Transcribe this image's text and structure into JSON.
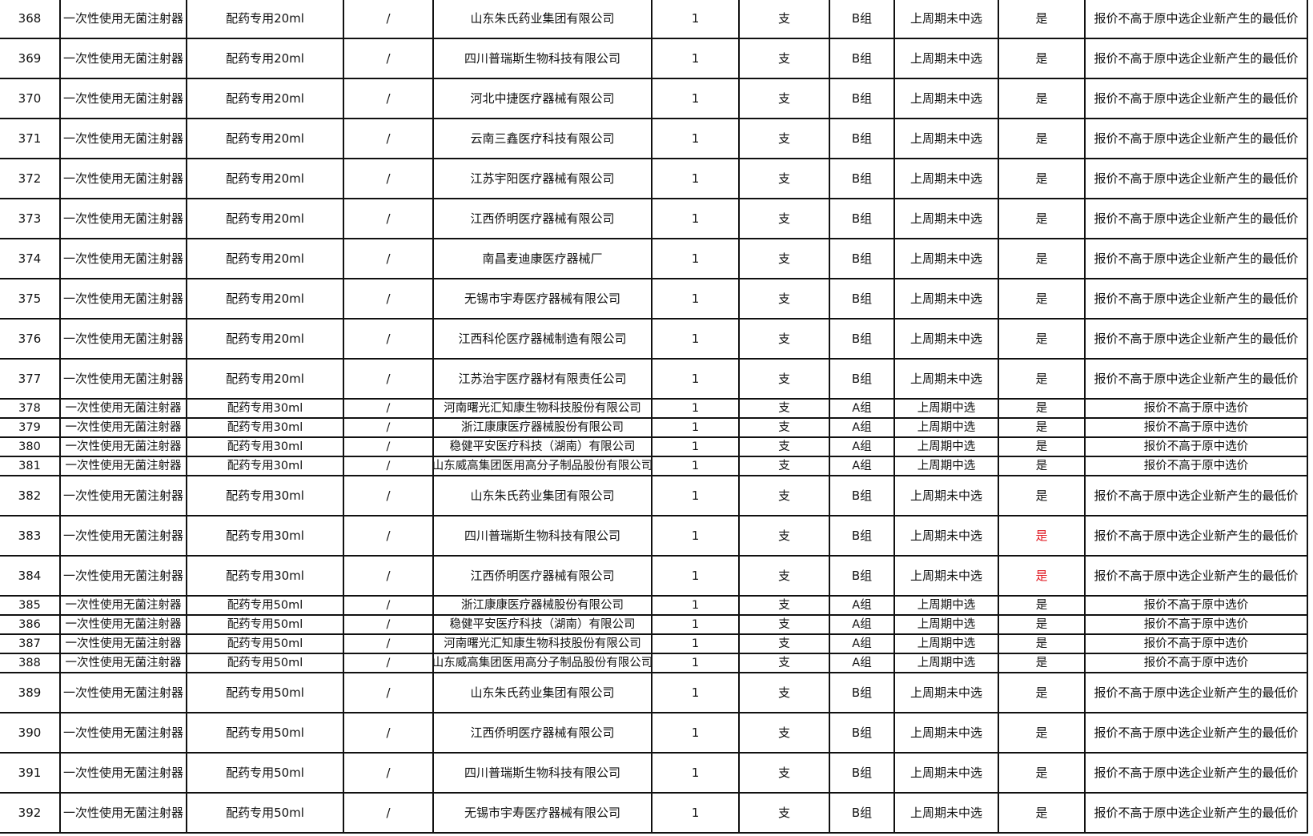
{
  "colors": {
    "flag_highlight": "#e0141e",
    "border": "#111111"
  },
  "rows": [
    {
      "no": "368",
      "name": "一次性使用无菌注射器",
      "spec": "配药专用20ml",
      "model": "/",
      "company": "山东朱氏药业集团有限公司",
      "qty": "1",
      "unit": "支",
      "group": "B组",
      "status": "上周期未中选",
      "flag": "是",
      "rule": "报价不高于原中选企业新产生的最低价",
      "tall": true
    },
    {
      "no": "369",
      "name": "一次性使用无菌注射器",
      "spec": "配药专用20ml",
      "model": "/",
      "company": "四川普瑞斯生物科技有限公司",
      "qty": "1",
      "unit": "支",
      "group": "B组",
      "status": "上周期未中选",
      "flag": "是",
      "rule": "报价不高于原中选企业新产生的最低价",
      "tall": true
    },
    {
      "no": "370",
      "name": "一次性使用无菌注射器",
      "spec": "配药专用20ml",
      "model": "/",
      "company": "河北中捷医疗器械有限公司",
      "qty": "1",
      "unit": "支",
      "group": "B组",
      "status": "上周期未中选",
      "flag": "是",
      "rule": "报价不高于原中选企业新产生的最低价",
      "tall": true
    },
    {
      "no": "371",
      "name": "一次性使用无菌注射器",
      "spec": "配药专用20ml",
      "model": "/",
      "company": "云南三鑫医疗科技有限公司",
      "qty": "1",
      "unit": "支",
      "group": "B组",
      "status": "上周期未中选",
      "flag": "是",
      "rule": "报价不高于原中选企业新产生的最低价",
      "tall": true
    },
    {
      "no": "372",
      "name": "一次性使用无菌注射器",
      "spec": "配药专用20ml",
      "model": "/",
      "company": "江苏宇阳医疗器械有限公司",
      "qty": "1",
      "unit": "支",
      "group": "B组",
      "status": "上周期未中选",
      "flag": "是",
      "rule": "报价不高于原中选企业新产生的最低价",
      "tall": true
    },
    {
      "no": "373",
      "name": "一次性使用无菌注射器",
      "spec": "配药专用20ml",
      "model": "/",
      "company": "江西侨明医疗器械有限公司",
      "qty": "1",
      "unit": "支",
      "group": "B组",
      "status": "上周期未中选",
      "flag": "是",
      "rule": "报价不高于原中选企业新产生的最低价",
      "tall": true
    },
    {
      "no": "374",
      "name": "一次性使用无菌注射器",
      "spec": "配药专用20ml",
      "model": "/",
      "company": "南昌麦迪康医疗器械厂",
      "qty": "1",
      "unit": "支",
      "group": "B组",
      "status": "上周期未中选",
      "flag": "是",
      "rule": "报价不高于原中选企业新产生的最低价",
      "tall": true
    },
    {
      "no": "375",
      "name": "一次性使用无菌注射器",
      "spec": "配药专用20ml",
      "model": "/",
      "company": "无锡市宇寿医疗器械有限公司",
      "qty": "1",
      "unit": "支",
      "group": "B组",
      "status": "上周期未中选",
      "flag": "是",
      "rule": "报价不高于原中选企业新产生的最低价",
      "tall": true
    },
    {
      "no": "376",
      "name": "一次性使用无菌注射器",
      "spec": "配药专用20ml",
      "model": "/",
      "company": "江西科伦医疗器械制造有限公司",
      "qty": "1",
      "unit": "支",
      "group": "B组",
      "status": "上周期未中选",
      "flag": "是",
      "rule": "报价不高于原中选企业新产生的最低价",
      "tall": true
    },
    {
      "no": "377",
      "name": "一次性使用无菌注射器",
      "spec": "配药专用20ml",
      "model": "/",
      "company": "江苏治宇医疗器材有限责任公司",
      "qty": "1",
      "unit": "支",
      "group": "B组",
      "status": "上周期未中选",
      "flag": "是",
      "rule": "报价不高于原中选企业新产生的最低价",
      "tall": true
    },
    {
      "no": "378",
      "name": "一次性使用无菌注射器",
      "spec": "配药专用30ml",
      "model": "/",
      "company": "河南曙光汇知康生物科技股份有限公司",
      "qty": "1",
      "unit": "支",
      "group": "A组",
      "status": "上周期中选",
      "flag": "是",
      "rule": "报价不高于原中选价",
      "tall": false
    },
    {
      "no": "379",
      "name": "一次性使用无菌注射器",
      "spec": "配药专用30ml",
      "model": "/",
      "company": "浙江康康医疗器械股份有限公司",
      "qty": "1",
      "unit": "支",
      "group": "A组",
      "status": "上周期中选",
      "flag": "是",
      "rule": "报价不高于原中选价",
      "tall": false
    },
    {
      "no": "380",
      "name": "一次性使用无菌注射器",
      "spec": "配药专用30ml",
      "model": "/",
      "company": "稳健平安医疗科技（湖南）有限公司",
      "qty": "1",
      "unit": "支",
      "group": "A组",
      "status": "上周期中选",
      "flag": "是",
      "rule": "报价不高于原中选价",
      "tall": false
    },
    {
      "no": "381",
      "name": "一次性使用无菌注射器",
      "spec": "配药专用30ml",
      "model": "/",
      "company": "山东威高集团医用高分子制品股份有限公司",
      "qty": "1",
      "unit": "支",
      "group": "A组",
      "status": "上周期中选",
      "flag": "是",
      "rule": "报价不高于原中选价",
      "tall": false
    },
    {
      "no": "382",
      "name": "一次性使用无菌注射器",
      "spec": "配药专用30ml",
      "model": "/",
      "company": "山东朱氏药业集团有限公司",
      "qty": "1",
      "unit": "支",
      "group": "B组",
      "status": "上周期未中选",
      "flag": "是",
      "rule": "报价不高于原中选企业新产生的最低价",
      "tall": true
    },
    {
      "no": "383",
      "name": "一次性使用无菌注射器",
      "spec": "配药专用30ml",
      "model": "/",
      "company": "四川普瑞斯生物科技有限公司",
      "qty": "1",
      "unit": "支",
      "group": "B组",
      "status": "上周期未中选",
      "flag": "是",
      "flag_red": true,
      "rule": "报价不高于原中选企业新产生的最低价",
      "tall": true
    },
    {
      "no": "384",
      "name": "一次性使用无菌注射器",
      "spec": "配药专用30ml",
      "model": "/",
      "company": "江西侨明医疗器械有限公司",
      "qty": "1",
      "unit": "支",
      "group": "B组",
      "status": "上周期未中选",
      "flag": "是",
      "flag_red": true,
      "rule": "报价不高于原中选企业新产生的最低价",
      "tall": true
    },
    {
      "no": "385",
      "name": "一次性使用无菌注射器",
      "spec": "配药专用50ml",
      "model": "/",
      "company": "浙江康康医疗器械股份有限公司",
      "qty": "1",
      "unit": "支",
      "group": "A组",
      "status": "上周期中选",
      "flag": "是",
      "rule": "报价不高于原中选价",
      "tall": false
    },
    {
      "no": "386",
      "name": "一次性使用无菌注射器",
      "spec": "配药专用50ml",
      "model": "/",
      "company": "稳健平安医疗科技（湖南）有限公司",
      "qty": "1",
      "unit": "支",
      "group": "A组",
      "status": "上周期中选",
      "flag": "是",
      "rule": "报价不高于原中选价",
      "tall": false
    },
    {
      "no": "387",
      "name": "一次性使用无菌注射器",
      "spec": "配药专用50ml",
      "model": "/",
      "company": "河南曙光汇知康生物科技股份有限公司",
      "qty": "1",
      "unit": "支",
      "group": "A组",
      "status": "上周期中选",
      "flag": "是",
      "rule": "报价不高于原中选价",
      "tall": false
    },
    {
      "no": "388",
      "name": "一次性使用无菌注射器",
      "spec": "配药专用50ml",
      "model": "/",
      "company": "山东威高集团医用高分子制品股份有限公司",
      "qty": "1",
      "unit": "支",
      "group": "A组",
      "status": "上周期中选",
      "flag": "是",
      "rule": "报价不高于原中选价",
      "tall": false
    },
    {
      "no": "389",
      "name": "一次性使用无菌注射器",
      "spec": "配药专用50ml",
      "model": "/",
      "company": "山东朱氏药业集团有限公司",
      "qty": "1",
      "unit": "支",
      "group": "B组",
      "status": "上周期未中选",
      "flag": "是",
      "rule": "报价不高于原中选企业新产生的最低价",
      "tall": true
    },
    {
      "no": "390",
      "name": "一次性使用无菌注射器",
      "spec": "配药专用50ml",
      "model": "/",
      "company": "江西侨明医疗器械有限公司",
      "qty": "1",
      "unit": "支",
      "group": "B组",
      "status": "上周期未中选",
      "flag": "是",
      "rule": "报价不高于原中选企业新产生的最低价",
      "tall": true
    },
    {
      "no": "391",
      "name": "一次性使用无菌注射器",
      "spec": "配药专用50ml",
      "model": "/",
      "company": "四川普瑞斯生物科技有限公司",
      "qty": "1",
      "unit": "支",
      "group": "B组",
      "status": "上周期未中选",
      "flag": "是",
      "rule": "报价不高于原中选企业新产生的最低价",
      "tall": true
    },
    {
      "no": "392",
      "name": "一次性使用无菌注射器",
      "spec": "配药专用50ml",
      "model": "/",
      "company": "无锡市宇寿医疗器械有限公司",
      "qty": "1",
      "unit": "支",
      "group": "B组",
      "status": "上周期未中选",
      "flag": "是",
      "rule": "报价不高于原中选企业新产生的最低价",
      "tall": true
    }
  ]
}
